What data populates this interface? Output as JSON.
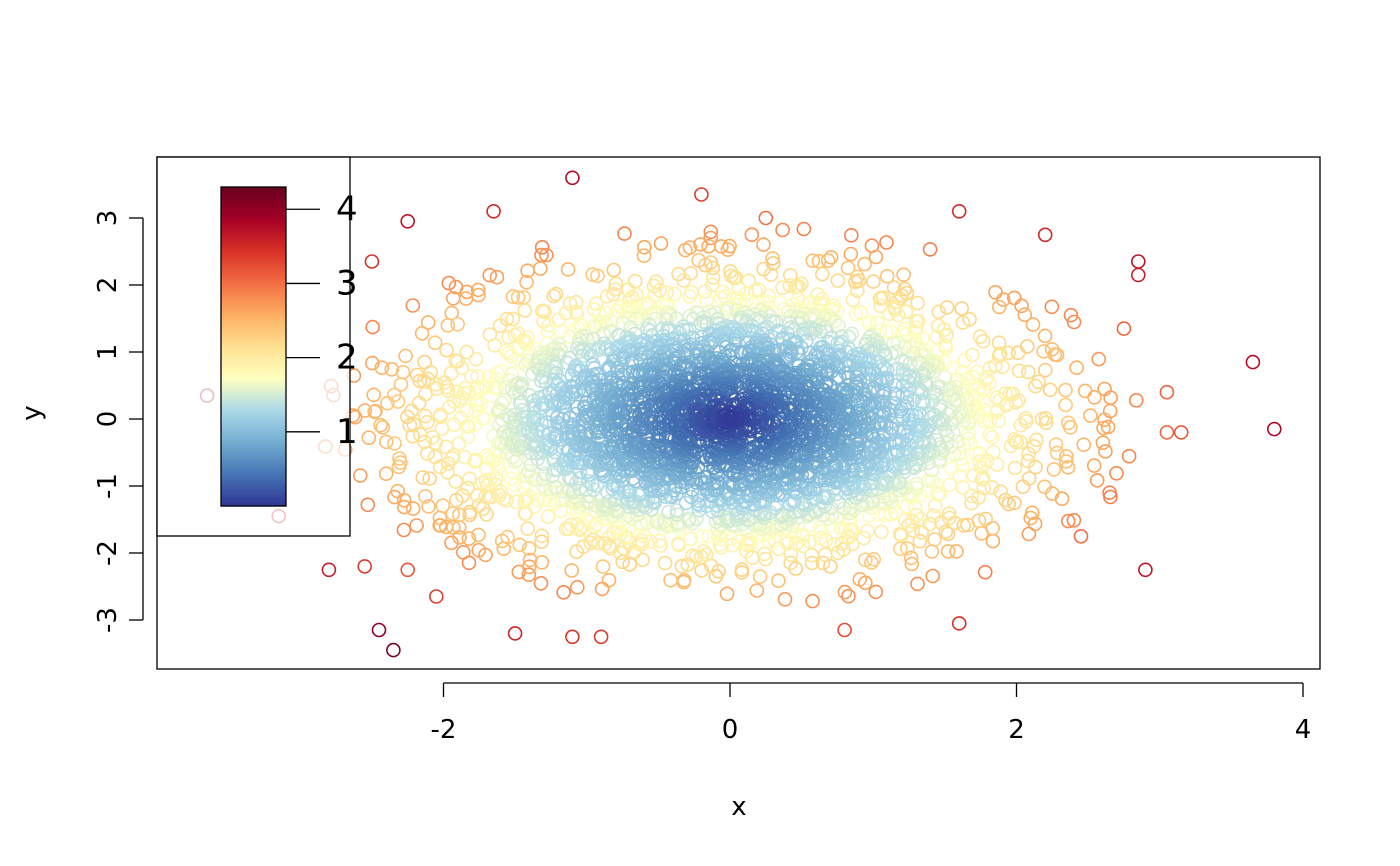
{
  "chart_data": {
    "type": "scatter",
    "title": "",
    "xlabel": "x",
    "ylabel": "y",
    "xlim": [
      -4,
      4
    ],
    "ylim": [
      -3.75,
      3.85
    ],
    "x_ticks": [
      -2,
      0,
      2,
      4
    ],
    "y_ticks": [
      -3,
      -2,
      -1,
      0,
      1,
      2,
      3
    ],
    "x_tick_labels": [
      "-2",
      "0",
      "2",
      "4"
    ],
    "y_tick_labels": [
      "-3",
      "-2",
      "-1",
      "0",
      "1",
      "2",
      "3"
    ],
    "marker": "open-circle",
    "color_variable": "distance from origin",
    "distribution": {
      "kind": "bivariate normal",
      "x_mean": 0,
      "x_sd": 1,
      "y_mean": 0,
      "y_sd": 1,
      "n_points_approx": 10000
    },
    "colorbar": {
      "placement": "top-left inset",
      "min": 0,
      "max": 4.3,
      "ticks": [
        1,
        2,
        3,
        4
      ],
      "tick_labels": [
        "1",
        "2",
        "3",
        "4"
      ],
      "palette": [
        "#313695",
        "#4575b4",
        "#74add1",
        "#abd9e9",
        "#ffffbf",
        "#fee090",
        "#fdae61",
        "#f46d43",
        "#d73027",
        "#a50026",
        "#67001f"
      ]
    },
    "outliers": [
      {
        "x": -1.1,
        "y": 3.6
      },
      {
        "x": -0.2,
        "y": 3.35
      },
      {
        "x": 0.25,
        "y": 3.0
      },
      {
        "x": 1.6,
        "y": 3.1
      },
      {
        "x": 2.2,
        "y": 2.75
      },
      {
        "x": -2.25,
        "y": 2.95
      },
      {
        "x": -1.65,
        "y": 3.1
      },
      {
        "x": 2.85,
        "y": 2.35
      },
      {
        "x": 2.85,
        "y": 2.15
      },
      {
        "x": 2.75,
        "y": 1.35
      },
      {
        "x": 3.65,
        "y": 0.85
      },
      {
        "x": 3.8,
        "y": -0.15
      },
      {
        "x": 3.05,
        "y": -0.2
      },
      {
        "x": 3.15,
        "y": -0.2
      },
      {
        "x": 3.05,
        "y": 0.4
      },
      {
        "x": 2.9,
        "y": -2.25
      },
      {
        "x": 1.6,
        "y": -3.05
      },
      {
        "x": 0.8,
        "y": -3.15
      },
      {
        "x": -0.9,
        "y": -3.25
      },
      {
        "x": -1.1,
        "y": -3.25
      },
      {
        "x": -1.5,
        "y": -3.2
      },
      {
        "x": -2.45,
        "y": -3.15
      },
      {
        "x": -2.35,
        "y": -3.45
      },
      {
        "x": -2.05,
        "y": -2.65
      },
      {
        "x": -2.55,
        "y": -2.2
      },
      {
        "x": -2.8,
        "y": -2.25
      },
      {
        "x": -2.25,
        "y": -2.25
      },
      {
        "x": -3.65,
        "y": 0.35
      },
      {
        "x": -3.15,
        "y": -1.45
      },
      {
        "x": 2.65,
        "y": -1.1
      },
      {
        "x": -2.5,
        "y": 2.35
      },
      {
        "x": 2.45,
        "y": -1.75
      }
    ]
  }
}
